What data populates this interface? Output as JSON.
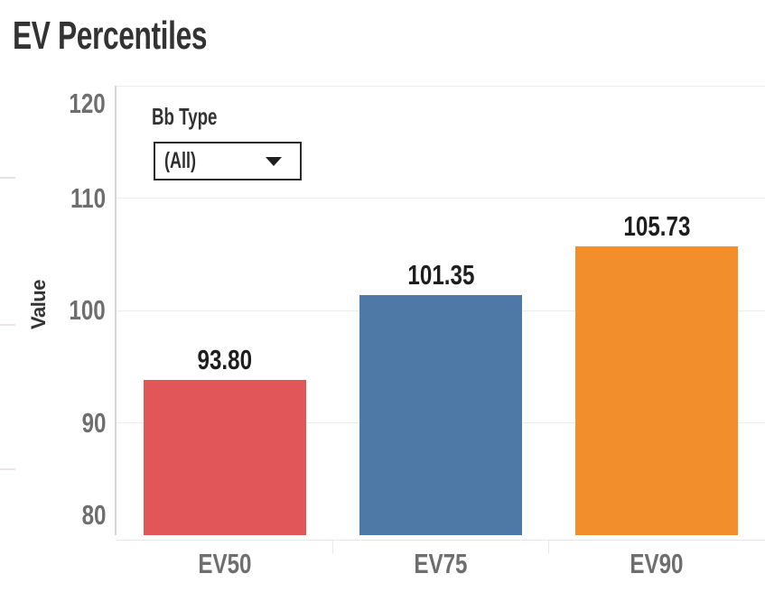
{
  "page": {
    "title": "EV Percentiles"
  },
  "filter": {
    "label": "Bb Type",
    "selected": "(All)"
  },
  "chart_data": {
    "type": "bar",
    "title": "EV Percentiles",
    "categories": [
      "EV50",
      "EV75",
      "EV90"
    ],
    "values": [
      93.8,
      101.35,
      105.73
    ],
    "value_labels": [
      "93.80",
      "101.35",
      "105.73"
    ],
    "bar_colors": [
      "#E15759",
      "#4E79A7",
      "#F28E2B"
    ],
    "xlabel": "",
    "ylabel": "Value",
    "ylim": [
      80,
      120
    ],
    "yticks": [
      80,
      90,
      100,
      110,
      120
    ],
    "grid": true,
    "legend": false,
    "value_labels_position": "above-bars"
  },
  "colors": {
    "title_text": "#333333",
    "tick_text": "#6e6e6e",
    "data_label_text": "#1e1e1e",
    "axis_line": "#d6d6d6",
    "gridline": "#ececec",
    "dropdown_border": "#2a2a2a",
    "background": "#ffffff"
  }
}
